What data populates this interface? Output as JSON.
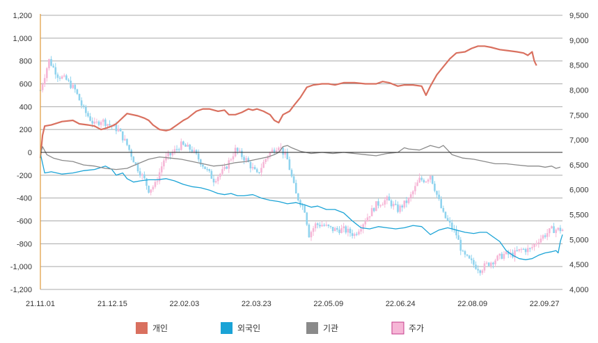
{
  "chart_data": {
    "type": "line",
    "title": "",
    "xlabel": "",
    "ylabel": "",
    "x_tick_labels": [
      "21.11.01",
      "21.12.15",
      "22.02.03",
      "22.03.23",
      "22.05.09",
      "22.06.24",
      "22.08.09",
      "22.09.27"
    ],
    "x_tick_index": [
      0,
      20,
      40,
      60,
      80,
      100,
      120,
      140
    ],
    "y_left": {
      "ylim": [
        -1200,
        1200
      ],
      "ticks": [
        -1200,
        -1000,
        -800,
        -600,
        -400,
        -200,
        0,
        200,
        400,
        600,
        800,
        1000,
        1200
      ],
      "tick_labels": [
        "-1,200",
        "-1,000",
        "-800",
        "-600",
        "-400",
        "-200",
        "0",
        "200",
        "400",
        "600",
        "800",
        "1,000",
        "1,200"
      ]
    },
    "y_right": {
      "ylim": [
        4000,
        9500
      ],
      "ticks": [
        4000,
        4500,
        5000,
        5500,
        6000,
        6500,
        7000,
        7500,
        8000,
        8500,
        9000,
        9500
      ],
      "tick_labels": [
        "4,000",
        "4,500",
        "5,000",
        "5,500",
        "6,000",
        "6,500",
        "7,000",
        "7,500",
        "8,000",
        "8,500",
        "9,000",
        "9,500"
      ]
    },
    "grid": true,
    "legend_position": "bottom",
    "series": [
      {
        "name": "개인",
        "axis": "left",
        "color": "#d9705f",
        "width": 2.2,
        "points": [
          [
            0,
            -50
          ],
          [
            1,
            150
          ],
          [
            2,
            230
          ],
          [
            5,
            240
          ],
          [
            10,
            270
          ],
          [
            15,
            280
          ],
          [
            18,
            250
          ],
          [
            22,
            240
          ],
          [
            25,
            230
          ],
          [
            28,
            200
          ],
          [
            30,
            210
          ],
          [
            33,
            230
          ],
          [
            35,
            250
          ],
          [
            40,
            340
          ],
          [
            45,
            320
          ],
          [
            48,
            300
          ],
          [
            50,
            280
          ],
          [
            52,
            240
          ],
          [
            55,
            200
          ],
          [
            58,
            190
          ],
          [
            60,
            200
          ],
          [
            63,
            240
          ],
          [
            66,
            280
          ],
          [
            68,
            300
          ],
          [
            70,
            330
          ],
          [
            72,
            360
          ],
          [
            75,
            380
          ],
          [
            78,
            380
          ],
          [
            82,
            360
          ],
          [
            85,
            370
          ],
          [
            87,
            330
          ],
          [
            90,
            330
          ],
          [
            93,
            350
          ],
          [
            96,
            380
          ],
          [
            98,
            370
          ],
          [
            100,
            380
          ],
          [
            103,
            360
          ],
          [
            106,
            330
          ],
          [
            108,
            280
          ],
          [
            110,
            260
          ],
          [
            112,
            330
          ],
          [
            115,
            360
          ],
          [
            117,
            410
          ],
          [
            120,
            480
          ],
          [
            123,
            570
          ],
          [
            126,
            590
          ],
          [
            130,
            600
          ],
          [
            133,
            600
          ],
          [
            136,
            590
          ],
          [
            140,
            610
          ],
          [
            145,
            610
          ],
          [
            150,
            600
          ],
          [
            155,
            600
          ],
          [
            158,
            620
          ],
          [
            161,
            610
          ],
          [
            165,
            580
          ],
          [
            168,
            590
          ],
          [
            172,
            590
          ],
          [
            176,
            580
          ],
          [
            178,
            500
          ],
          [
            180,
            580
          ],
          [
            183,
            680
          ],
          [
            186,
            750
          ],
          [
            189,
            820
          ],
          [
            192,
            870
          ],
          [
            196,
            880
          ],
          [
            199,
            910
          ],
          [
            202,
            930
          ],
          [
            205,
            930
          ],
          [
            208,
            920
          ],
          [
            212,
            900
          ],
          [
            216,
            890
          ],
          [
            220,
            880
          ],
          [
            223,
            870
          ],
          [
            225,
            850
          ],
          [
            227,
            880
          ],
          [
            228,
            800
          ],
          [
            229,
            760
          ]
        ]
      },
      {
        "name": "외국인",
        "axis": "left",
        "color": "#1aa3d6",
        "width": 1.3,
        "points": [
          [
            0,
            -10
          ],
          [
            2,
            -180
          ],
          [
            5,
            -170
          ],
          [
            10,
            -190
          ],
          [
            15,
            -180
          ],
          [
            20,
            -160
          ],
          [
            25,
            -150
          ],
          [
            30,
            -120
          ],
          [
            33,
            -150
          ],
          [
            35,
            -200
          ],
          [
            38,
            -180
          ],
          [
            40,
            -230
          ],
          [
            43,
            -260
          ],
          [
            46,
            -250
          ],
          [
            50,
            -240
          ],
          [
            54,
            -240
          ],
          [
            58,
            -230
          ],
          [
            62,
            -250
          ],
          [
            66,
            -280
          ],
          [
            70,
            -300
          ],
          [
            74,
            -310
          ],
          [
            78,
            -330
          ],
          [
            82,
            -360
          ],
          [
            85,
            -370
          ],
          [
            88,
            -360
          ],
          [
            91,
            -380
          ],
          [
            94,
            -380
          ],
          [
            98,
            -370
          ],
          [
            102,
            -400
          ],
          [
            106,
            -420
          ],
          [
            110,
            -430
          ],
          [
            114,
            -450
          ],
          [
            118,
            -440
          ],
          [
            122,
            -460
          ],
          [
            125,
            -480
          ],
          [
            128,
            -470
          ],
          [
            132,
            -500
          ],
          [
            136,
            -500
          ],
          [
            140,
            -530
          ],
          [
            144,
            -600
          ],
          [
            148,
            -660
          ],
          [
            152,
            -670
          ],
          [
            156,
            -650
          ],
          [
            160,
            -660
          ],
          [
            164,
            -670
          ],
          [
            168,
            -660
          ],
          [
            172,
            -640
          ],
          [
            176,
            -650
          ],
          [
            180,
            -720
          ],
          [
            184,
            -680
          ],
          [
            188,
            -660
          ],
          [
            192,
            -680
          ],
          [
            196,
            -700
          ],
          [
            200,
            -710
          ],
          [
            203,
            -700
          ],
          [
            206,
            -700
          ],
          [
            209,
            -740
          ],
          [
            212,
            -780
          ],
          [
            215,
            -860
          ],
          [
            218,
            -900
          ],
          [
            221,
            -930
          ],
          [
            224,
            -940
          ],
          [
            227,
            -930
          ],
          [
            230,
            -900
          ],
          [
            233,
            -880
          ],
          [
            236,
            -870
          ],
          [
            238,
            -860
          ],
          [
            239,
            -880
          ],
          [
            240,
            -780
          ],
          [
            241,
            -720
          ]
        ]
      },
      {
        "name": "기관",
        "axis": "left",
        "color": "#8a8a8a",
        "width": 1.3,
        "points": [
          [
            0,
            -20
          ],
          [
            1,
            50
          ],
          [
            3,
            -20
          ],
          [
            6,
            -50
          ],
          [
            10,
            -70
          ],
          [
            15,
            -80
          ],
          [
            20,
            -110
          ],
          [
            25,
            -120
          ],
          [
            30,
            -140
          ],
          [
            35,
            -150
          ],
          [
            40,
            -140
          ],
          [
            45,
            -100
          ],
          [
            50,
            -60
          ],
          [
            55,
            -40
          ],
          [
            60,
            -50
          ],
          [
            65,
            -60
          ],
          [
            70,
            -80
          ],
          [
            75,
            -100
          ],
          [
            80,
            -120
          ],
          [
            85,
            -110
          ],
          [
            90,
            -90
          ],
          [
            95,
            -80
          ],
          [
            100,
            -60
          ],
          [
            105,
            -40
          ],
          [
            108,
            -20
          ],
          [
            110,
            0
          ],
          [
            112,
            50
          ],
          [
            114,
            60
          ],
          [
            116,
            40
          ],
          [
            120,
            10
          ],
          [
            125,
            -10
          ],
          [
            130,
            0
          ],
          [
            135,
            -10
          ],
          [
            140,
            0
          ],
          [
            145,
            -10
          ],
          [
            150,
            -20
          ],
          [
            155,
            -30
          ],
          [
            160,
            -10
          ],
          [
            165,
            0
          ],
          [
            168,
            40
          ],
          [
            170,
            30
          ],
          [
            175,
            20
          ],
          [
            180,
            60
          ],
          [
            184,
            40
          ],
          [
            186,
            60
          ],
          [
            188,
            20
          ],
          [
            190,
            -20
          ],
          [
            195,
            -50
          ],
          [
            200,
            -60
          ],
          [
            205,
            -80
          ],
          [
            210,
            -100
          ],
          [
            215,
            -100
          ],
          [
            220,
            -110
          ],
          [
            225,
            -120
          ],
          [
            230,
            -120
          ],
          [
            233,
            -130
          ],
          [
            236,
            -120
          ],
          [
            238,
            -140
          ],
          [
            240,
            -130
          ]
        ]
      }
    ],
    "candlestick": {
      "name": "주가",
      "axis": "right",
      "up_color": "#f6b6d6",
      "down_color": "#8fd3ee",
      "anchors": [
        [
          0,
          8000
        ],
        [
          4,
          8600
        ],
        [
          8,
          8300
        ],
        [
          12,
          8200
        ],
        [
          16,
          8000
        ],
        [
          20,
          7600
        ],
        [
          25,
          7300
        ],
        [
          28,
          7400
        ],
        [
          32,
          7300
        ],
        [
          36,
          7200
        ],
        [
          40,
          6900
        ],
        [
          44,
          6500
        ],
        [
          48,
          6200
        ],
        [
          50,
          6000
        ],
        [
          53,
          6100
        ],
        [
          57,
          6600
        ],
        [
          60,
          6700
        ],
        [
          65,
          6900
        ],
        [
          70,
          6800
        ],
        [
          75,
          6500
        ],
        [
          80,
          6200
        ],
        [
          85,
          6400
        ],
        [
          90,
          6800
        ],
        [
          95,
          6600
        ],
        [
          100,
          6300
        ],
        [
          105,
          6700
        ],
        [
          110,
          6900
        ],
        [
          114,
          6600
        ],
        [
          118,
          5900
        ],
        [
          122,
          5600
        ],
        [
          124,
          5100
        ],
        [
          127,
          5300
        ],
        [
          130,
          5300
        ],
        [
          135,
          5200
        ],
        [
          140,
          5200
        ],
        [
          145,
          5100
        ],
        [
          150,
          5400
        ],
        [
          155,
          5700
        ],
        [
          160,
          5800
        ],
        [
          165,
          5600
        ],
        [
          170,
          5800
        ],
        [
          175,
          6200
        ],
        [
          178,
          6200
        ],
        [
          180,
          6300
        ],
        [
          183,
          5900
        ],
        [
          186,
          5500
        ],
        [
          189,
          5300
        ],
        [
          192,
          5100
        ],
        [
          195,
          4700
        ],
        [
          200,
          4500
        ],
        [
          203,
          4400
        ],
        [
          206,
          4500
        ],
        [
          210,
          4600
        ],
        [
          214,
          4700
        ],
        [
          218,
          4700
        ],
        [
          222,
          4800
        ],
        [
          226,
          4800
        ],
        [
          230,
          5000
        ],
        [
          233,
          5100
        ],
        [
          236,
          5200
        ],
        [
          240,
          5200
        ]
      ]
    },
    "legend": [
      {
        "label": "개인",
        "color": "#d9705f"
      },
      {
        "label": "외국인",
        "color": "#1aa3d6"
      },
      {
        "label": "기관",
        "color": "#8a8a8a"
      },
      {
        "label": "주가",
        "color": "#f6b6d6",
        "border": "#c43a8a"
      }
    ]
  }
}
